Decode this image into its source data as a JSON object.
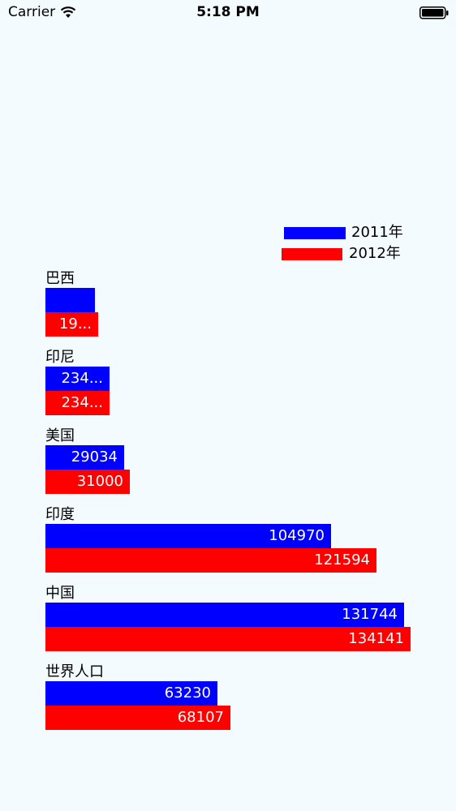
{
  "status_bar": {
    "carrier": "Carrier",
    "time": "5:18 PM"
  },
  "colors": {
    "background": "#F4FBFF",
    "series_2011": "#0000FF",
    "series_2012": "#FF0000"
  },
  "chart_data": {
    "type": "bar",
    "orientation": "horizontal",
    "title": "",
    "xlabel": "",
    "ylabel": "",
    "grid": false,
    "legend_position": "top-right",
    "categories": [
      "巴西",
      "印尼",
      "美国",
      "印度",
      "中国",
      "世界人口"
    ],
    "series": [
      {
        "name": "2011年",
        "color": "#0000FF",
        "values": [
          18203,
          23489,
          29034,
          104970,
          131744,
          63230
        ],
        "labels": [
          "",
          "234...",
          "29034",
          "104970",
          "131744",
          "63230"
        ]
      },
      {
        "name": "2012年",
        "color": "#FF0000",
        "values": [
          19325,
          23438,
          31000,
          121594,
          134141,
          68107
        ],
        "labels": [
          "19...",
          "234...",
          "31000",
          "121594",
          "134141",
          "68107"
        ]
      }
    ]
  }
}
